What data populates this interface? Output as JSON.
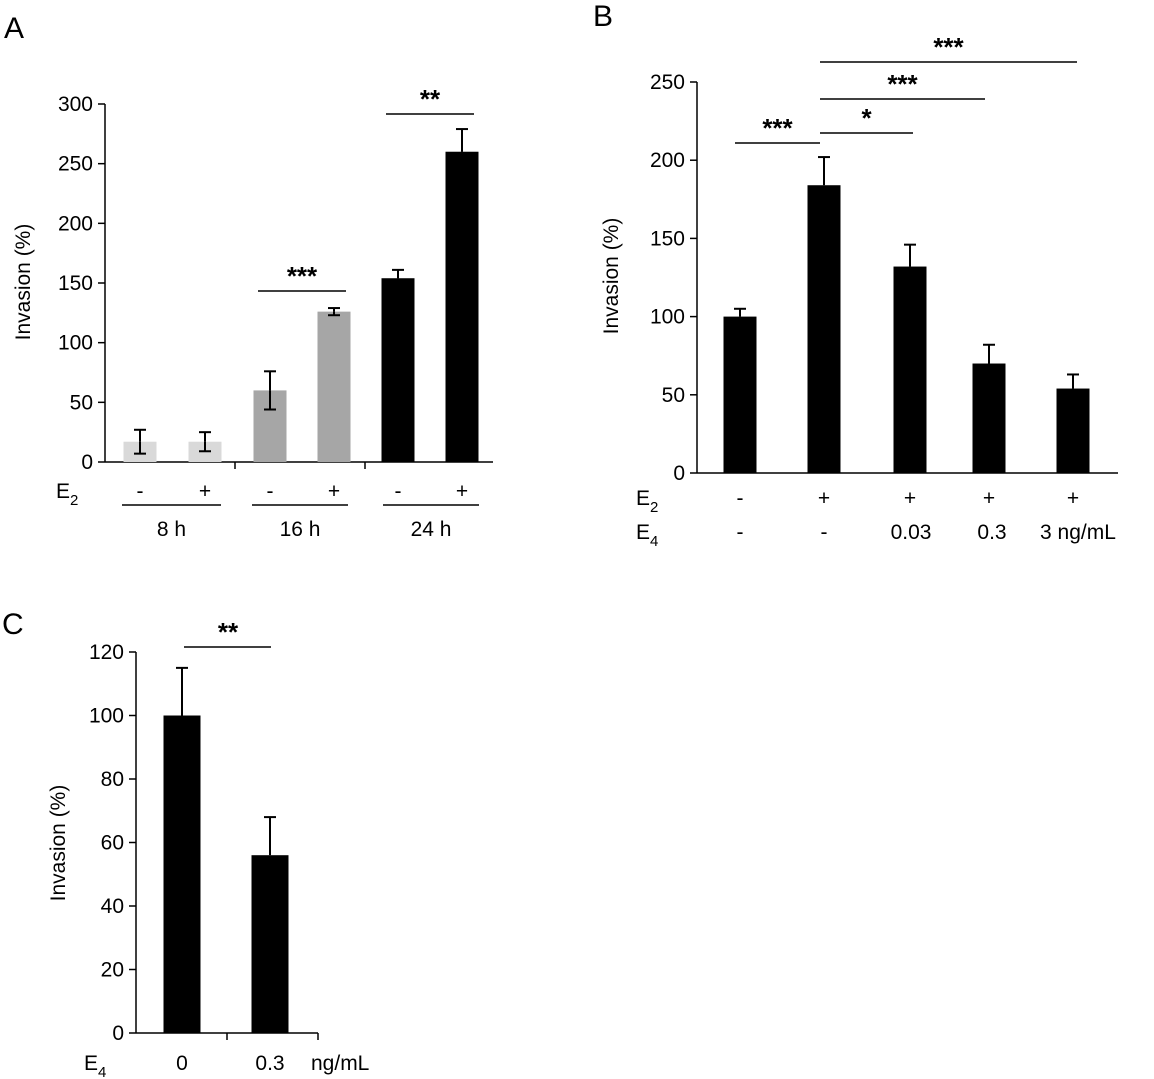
{
  "chart_data": [
    {
      "panel": "A",
      "type": "bar",
      "ylabel": "Invasion (%)",
      "ylim": [
        0,
        300
      ],
      "yticks": [
        0,
        50,
        100,
        150,
        200,
        250,
        300
      ],
      "row_labels": [
        {
          "main": "E",
          "sub": "2"
        }
      ],
      "bars": [
        {
          "group": "8 h",
          "E2": "-",
          "value": 17,
          "error": 10,
          "color": "#d9d9d9"
        },
        {
          "group": "8 h",
          "E2": "+",
          "value": 17,
          "error": 8,
          "color": "#d9d9d9"
        },
        {
          "group": "16 h",
          "E2": "-",
          "value": 60,
          "error": 16,
          "color": "#a6a6a6"
        },
        {
          "group": "16 h",
          "E2": "+",
          "value": 126,
          "error": 3,
          "color": "#a6a6a6"
        },
        {
          "group": "24 h",
          "E2": "-",
          "value": 154,
          "error": 7,
          "color": "#000000"
        },
        {
          "group": "24 h",
          "E2": "+",
          "value": 260,
          "error": 19,
          "color": "#000000"
        }
      ],
      "groups": [
        "8 h",
        "16 h",
        "24 h"
      ],
      "significance": [
        {
          "from": 2,
          "to": 3,
          "label": "***"
        },
        {
          "from": 4,
          "to": 5,
          "label": "**"
        }
      ]
    },
    {
      "panel": "B",
      "type": "bar",
      "ylabel": "Invasion (%)",
      "ylim": [
        0,
        250
      ],
      "yticks": [
        0,
        50,
        100,
        150,
        200,
        250
      ],
      "row_labels": [
        {
          "main": "E",
          "sub": "2"
        },
        {
          "main": "E",
          "sub": "4"
        }
      ],
      "bars": [
        {
          "E2": "-",
          "E4": "-",
          "value": 100,
          "error": 5,
          "color": "#000000"
        },
        {
          "E2": "+",
          "E4": "-",
          "value": 184,
          "error": 18,
          "color": "#000000"
        },
        {
          "E2": "+",
          "E4": "0.03",
          "value": 132,
          "error": 14,
          "color": "#000000"
        },
        {
          "E2": "+",
          "E4": "0.3",
          "value": 70,
          "error": 12,
          "color": "#000000"
        },
        {
          "E2": "+",
          "E4": "3 ng/mL",
          "value": 54,
          "error": 9,
          "color": "#000000"
        }
      ],
      "significance": [
        {
          "from": 0,
          "to": 1,
          "label": "***"
        },
        {
          "from": 1,
          "to": 2,
          "label": "*"
        },
        {
          "from": 1,
          "to": 3,
          "label": "***"
        },
        {
          "from": 1,
          "to": 4,
          "label": "***"
        }
      ]
    },
    {
      "panel": "C",
      "type": "bar",
      "ylabel": "Invasion (%)",
      "ylim": [
        0,
        120
      ],
      "yticks": [
        0,
        20,
        40,
        60,
        80,
        100,
        120
      ],
      "row_labels": [
        {
          "main": "E",
          "sub": "4"
        }
      ],
      "bars": [
        {
          "E4": "0",
          "value": 100,
          "error": 15,
          "color": "#000000"
        },
        {
          "E4": "0.3",
          "value": 56,
          "error": 12,
          "color": "#000000"
        }
      ],
      "unit": "ng/mL",
      "significance": [
        {
          "from": 0,
          "to": 1,
          "label": "**"
        }
      ]
    }
  ]
}
